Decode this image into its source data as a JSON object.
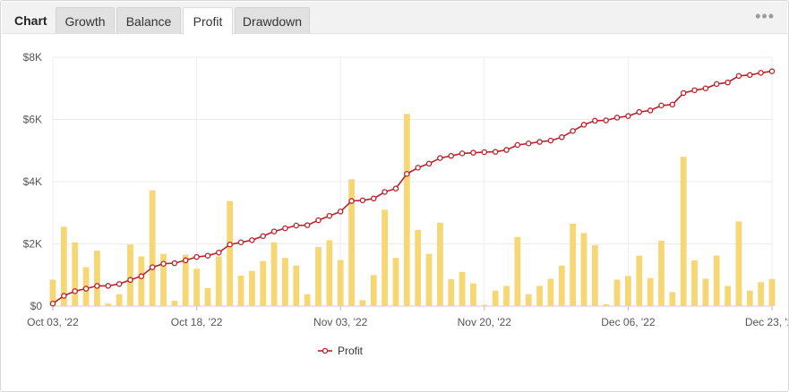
{
  "tabs": {
    "title": "Chart",
    "items": [
      "Growth",
      "Balance",
      "Profit",
      "Drawdown"
    ],
    "active": "Profit",
    "more_icon": "more-dots-icon"
  },
  "colors": {
    "bar": "#f7d774",
    "line": "#b8232b",
    "marker_fill": "#ffffff",
    "grid": "#ececec"
  },
  "chart_data": {
    "type": "bar+line",
    "x_ticks": [
      "Oct 03, '22",
      "Oct 18, '22",
      "Nov 03, '22",
      "Nov 20, '22",
      "Dec 06, '22",
      "Dec 23, '22"
    ],
    "y_ticks": [
      "$0",
      "$2K",
      "$4K",
      "$6K",
      "$8K"
    ],
    "ylim": [
      0,
      8000
    ],
    "grid": true,
    "legend": {
      "position": "bottom-center",
      "entries": [
        "Profit"
      ]
    },
    "bars": [
      850,
      2550,
      2050,
      1250,
      1780,
      80,
      380,
      1980,
      1600,
      3720,
      1680,
      170,
      1650,
      1200,
      580,
      1600,
      3380,
      980,
      1130,
      1450,
      2050,
      1550,
      1300,
      380,
      1900,
      2120,
      1480,
      4080,
      190,
      1000,
      3100,
      1550,
      6180,
      2450,
      1680,
      2680,
      870,
      1100,
      730,
      40,
      500,
      650,
      2220,
      380,
      650,
      880,
      1300,
      2650,
      2350,
      1960,
      60,
      850,
      970,
      1620,
      900,
      2100,
      450,
      4800,
      1470,
      880,
      1620,
      650,
      2720,
      500,
      770,
      870
    ],
    "series": [
      {
        "name": "Profit",
        "values": [
          80,
          330,
          480,
          560,
          650,
          650,
          710,
          840,
          960,
          1250,
          1360,
          1380,
          1470,
          1580,
          1620,
          1720,
          1980,
          2050,
          2120,
          2250,
          2400,
          2500,
          2590,
          2600,
          2760,
          2900,
          3040,
          3380,
          3400,
          3460,
          3670,
          3780,
          4250,
          4450,
          4580,
          4760,
          4830,
          4910,
          4930,
          4950,
          4960,
          5020,
          5180,
          5230,
          5280,
          5320,
          5430,
          5630,
          5830,
          5960,
          5970,
          6060,
          6110,
          6240,
          6290,
          6450,
          6480,
          6850,
          6940,
          7000,
          7140,
          7190,
          7400,
          7430,
          7500,
          7550
        ]
      }
    ]
  }
}
